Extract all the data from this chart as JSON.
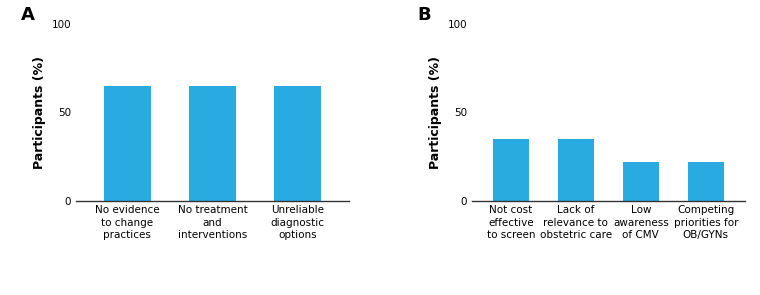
{
  "panel_A": {
    "label": "A",
    "categories": [
      "No evidence\nto change\npractices",
      "No treatment\nand\ninterventions",
      "Unreliable\ndiagnostic\noptions"
    ],
    "values": [
      65,
      65,
      65
    ],
    "ylabel": "Participants (%)",
    "ylim": [
      0,
      100
    ],
    "yticks": [
      0,
      50,
      100
    ]
  },
  "panel_B": {
    "label": "B",
    "categories": [
      "Not cost\neffective\nto screen",
      "Lack of\nrelevance to\nobstetric care",
      "Low\nawareness\nof CMV",
      "Competing\npriorities for\nOB/GYNs"
    ],
    "values": [
      35,
      35,
      22,
      22
    ],
    "ylabel": "Participants (%)",
    "ylim": [
      0,
      100
    ],
    "yticks": [
      0,
      50,
      100
    ]
  },
  "bar_color": "#29ABE2",
  "bar_width": 0.55,
  "background_color": "#ffffff",
  "tick_label_fontsize": 7.5,
  "ylabel_fontsize": 9,
  "panel_label_fontsize": 13
}
